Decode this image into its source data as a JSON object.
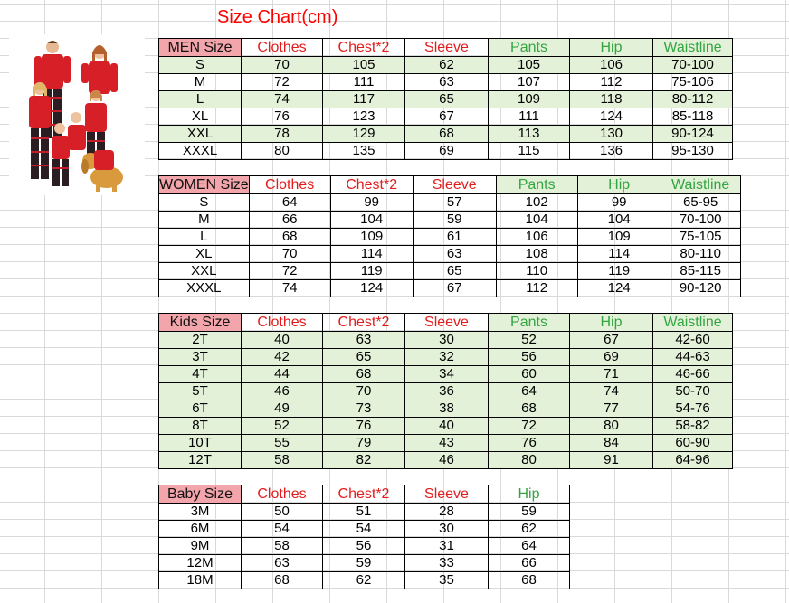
{
  "title": "Size Chart(cm)",
  "colors": {
    "title": "#ff0000",
    "red_header": "#e31d1d",
    "green_header": "#33a542",
    "size_header_bg": "#f2a5aa",
    "row_band": "#e3f1d8"
  },
  "tables": [
    {
      "size_label": "MEN Size",
      "columns": [
        "Clothes",
        "Chest*2",
        "Sleeve",
        "Pants",
        "Hip",
        "Waistline"
      ],
      "rows": [
        [
          "S",
          "70",
          "105",
          "62",
          "105",
          "106",
          "70-100"
        ],
        [
          "M",
          "72",
          "111",
          "63",
          "107",
          "112",
          "75-106"
        ],
        [
          "L",
          "74",
          "117",
          "65",
          "109",
          "118",
          "80-112"
        ],
        [
          "XL",
          "76",
          "123",
          "67",
          "111",
          "124",
          "85-118"
        ],
        [
          "XXL",
          "78",
          "129",
          "68",
          "113",
          "130",
          "90-124"
        ],
        [
          "XXXL",
          "80",
          "135",
          "69",
          "115",
          "136",
          "95-130"
        ]
      ]
    },
    {
      "size_label": "WOMEN Size",
      "columns": [
        "Clothes",
        "Chest*2",
        "Sleeve",
        "Pants",
        "Hip",
        "Waistline"
      ],
      "rows": [
        [
          "S",
          "64",
          "99",
          "57",
          "102",
          "99",
          "65-95"
        ],
        [
          "M",
          "66",
          "104",
          "59",
          "104",
          "104",
          "70-100"
        ],
        [
          "L",
          "68",
          "109",
          "61",
          "106",
          "109",
          "75-105"
        ],
        [
          "XL",
          "70",
          "114",
          "63",
          "108",
          "114",
          "80-110"
        ],
        [
          "XXL",
          "72",
          "119",
          "65",
          "110",
          "119",
          "85-115"
        ],
        [
          "XXXL",
          "74",
          "124",
          "67",
          "112",
          "124",
          "90-120"
        ]
      ]
    },
    {
      "size_label": "Kids Size",
      "columns": [
        "Clothes",
        "Chest*2",
        "Sleeve",
        "Pants",
        "Hip",
        "Waistline"
      ],
      "rows": [
        [
          "2T",
          "40",
          "63",
          "30",
          "52",
          "67",
          "42-60"
        ],
        [
          "3T",
          "42",
          "65",
          "32",
          "56",
          "69",
          "44-63"
        ],
        [
          "4T",
          "44",
          "68",
          "34",
          "60",
          "71",
          "46-66"
        ],
        [
          "5T",
          "46",
          "70",
          "36",
          "64",
          "74",
          "50-70"
        ],
        [
          "6T",
          "49",
          "73",
          "38",
          "68",
          "77",
          "54-76"
        ],
        [
          "8T",
          "52",
          "76",
          "40",
          "72",
          "80",
          "58-82"
        ],
        [
          "10T",
          "55",
          "79",
          "43",
          "76",
          "84",
          "60-90"
        ],
        [
          "12T",
          "58",
          "82",
          "46",
          "80",
          "91",
          "64-96"
        ]
      ]
    },
    {
      "size_label": "Baby Size",
      "columns": [
        "Clothes",
        "Chest*2",
        "Sleeve",
        "Hip"
      ],
      "rows": [
        [
          "3M",
          "50",
          "51",
          "28",
          "59"
        ],
        [
          "6M",
          "54",
          "54",
          "30",
          "62"
        ],
        [
          "9M",
          "58",
          "56",
          "31",
          "64"
        ],
        [
          "12M",
          "63",
          "59",
          "33",
          "66"
        ],
        [
          "18M",
          "68",
          "62",
          "35",
          "68"
        ]
      ]
    }
  ]
}
